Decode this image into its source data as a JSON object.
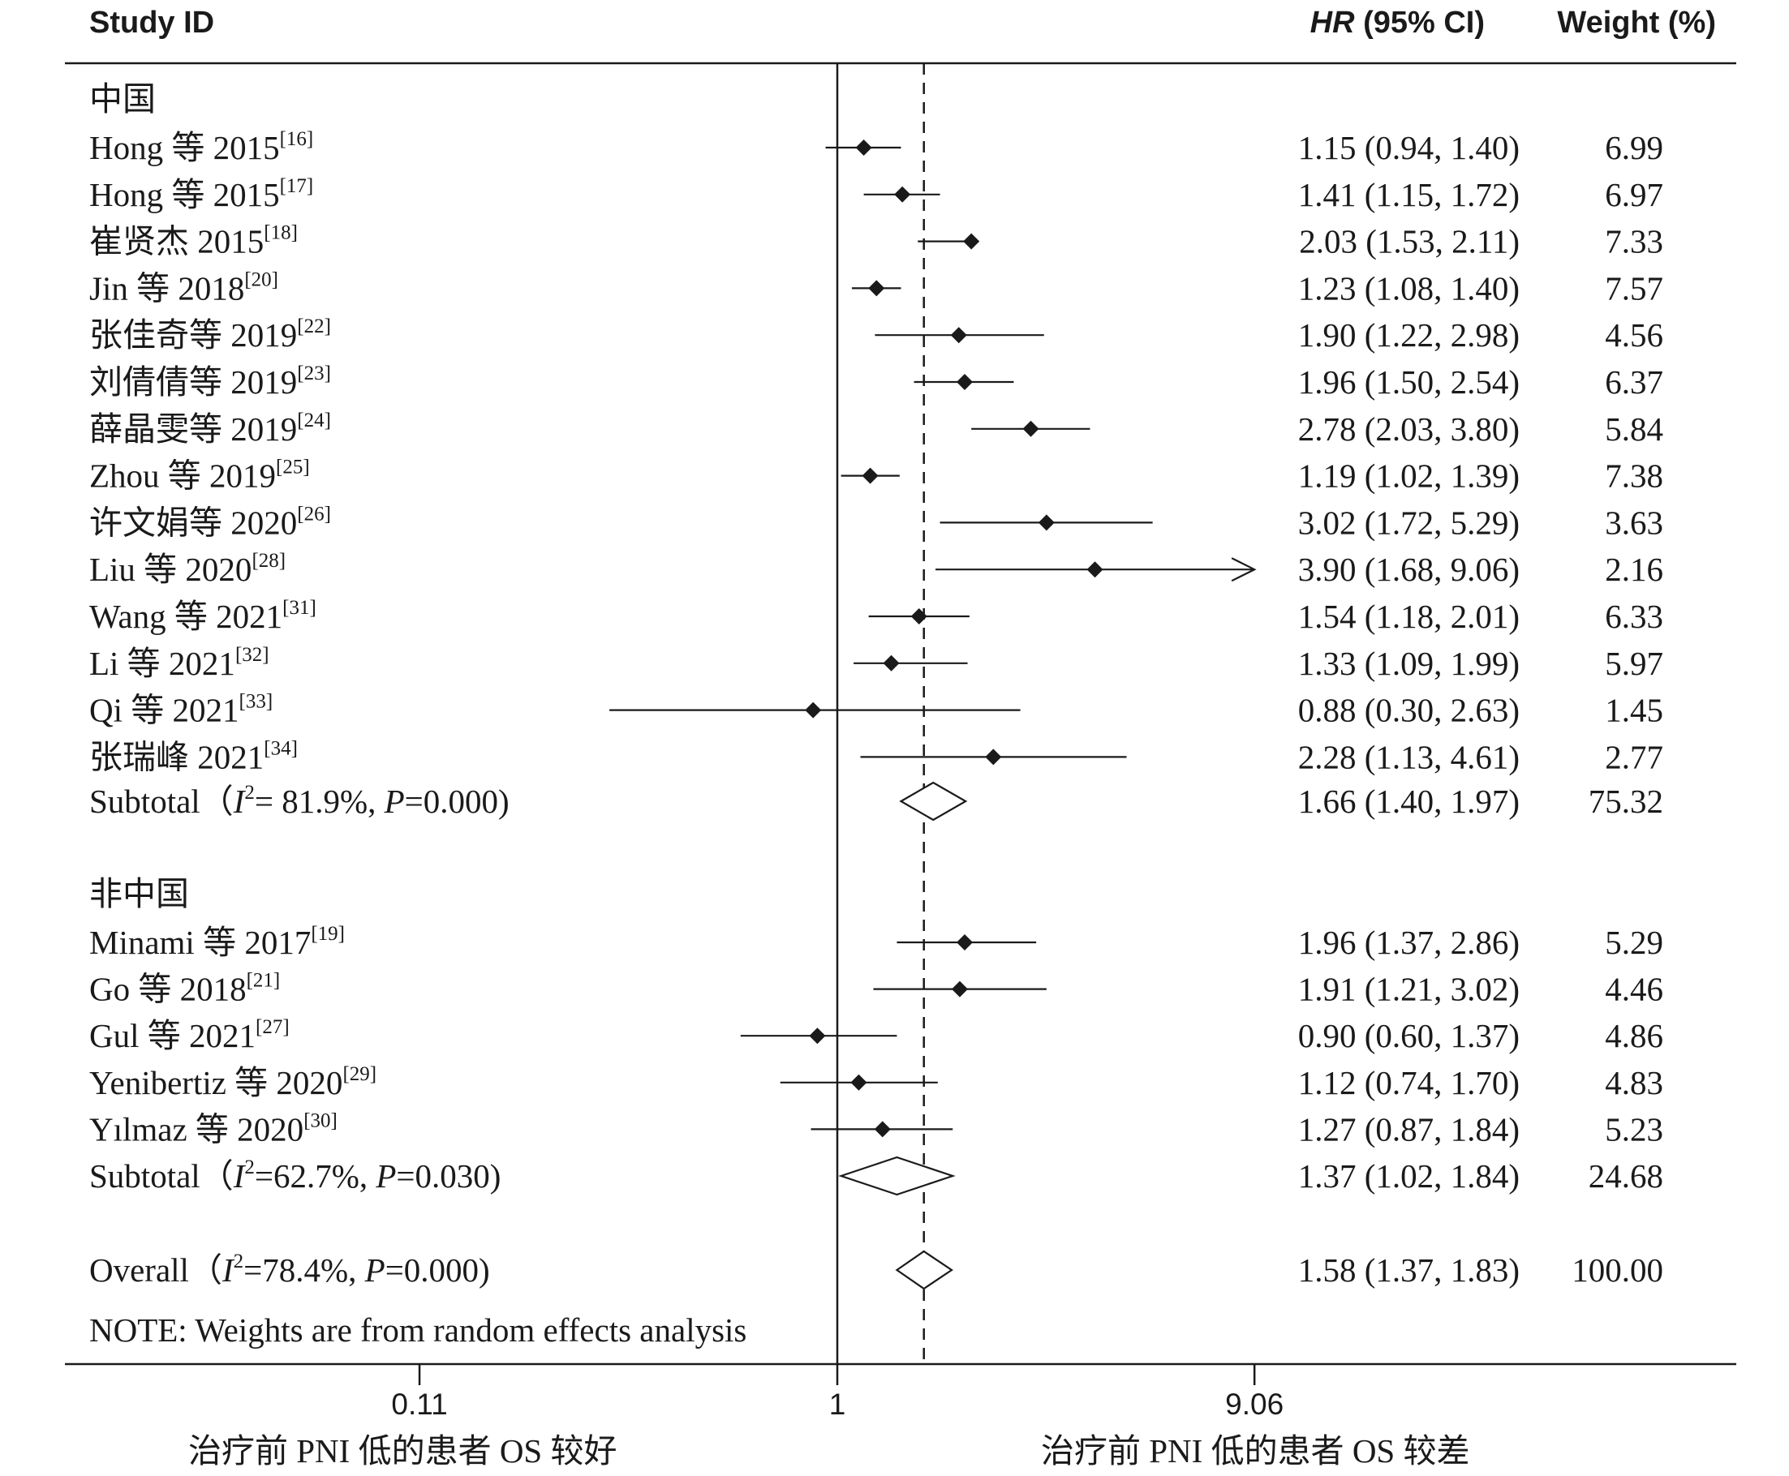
{
  "header": {
    "study": "Study ID",
    "hr_italic": "HR",
    "hr_rest": " (95% CI)",
    "weight": "Weight (%)"
  },
  "chart_data": {
    "type": "forest",
    "axis": {
      "scale": "log",
      "ticks": [
        0.11,
        1,
        9.06
      ],
      "tick_labels": [
        "0.11",
        "1",
        "9.06"
      ],
      "null_value": 1,
      "overall_line": 1.58
    },
    "footer_left": "治疗前 PNI 低的患者 OS 较好",
    "footer_right": "治疗前 PNI 低的患者 OS 较差",
    "note": "NOTE: Weights are from random effects analysis",
    "groups": [
      {
        "name": "中国",
        "studies": [
          {
            "label": "Hong 等 2015",
            "ref": "[16]",
            "hr": 1.15,
            "lo": 0.94,
            "hi": 1.4,
            "ci": "1.15 (0.94, 1.40)",
            "weight": "6.99"
          },
          {
            "label": "Hong 等 2015",
            "ref": "[17]",
            "hr": 1.41,
            "lo": 1.15,
            "hi": 1.72,
            "ci": "1.41 (1.15, 1.72)",
            "weight": "6.97"
          },
          {
            "label": "崔贤杰 2015",
            "ref": "[18]",
            "hr": 2.03,
            "lo": 1.53,
            "hi": 2.11,
            "ci": "2.03 (1.53, 2.11)",
            "weight": "7.33"
          },
          {
            "label": "Jin 等 2018",
            "ref": "[20]",
            "hr": 1.23,
            "lo": 1.08,
            "hi": 1.4,
            "ci": "1.23 (1.08, 1.40)",
            "weight": "7.57"
          },
          {
            "label": "张佳奇等 2019",
            "ref": "[22]",
            "hr": 1.9,
            "lo": 1.22,
            "hi": 2.98,
            "ci": "1.90 (1.22, 2.98)",
            "weight": "4.56"
          },
          {
            "label": "刘倩倩等 2019",
            "ref": "[23]",
            "hr": 1.96,
            "lo": 1.5,
            "hi": 2.54,
            "ci": "1.96 (1.50, 2.54)",
            "weight": "6.37"
          },
          {
            "label": "薛晶雯等 2019",
            "ref": "[24]",
            "hr": 2.78,
            "lo": 2.03,
            "hi": 3.8,
            "ci": "2.78 (2.03, 3.80)",
            "weight": "5.84"
          },
          {
            "label": "Zhou 等 2019",
            "ref": "[25]",
            "hr": 1.19,
            "lo": 1.02,
            "hi": 1.39,
            "ci": "1.19 (1.02, 1.39)",
            "weight": "7.38"
          },
          {
            "label": "许文娟等 2020",
            "ref": "[26]",
            "hr": 3.02,
            "lo": 1.72,
            "hi": 5.29,
            "ci": "3.02 (1.72, 5.29)",
            "weight": "3.63"
          },
          {
            "label": "Liu 等 2020",
            "ref": "[28]",
            "hr": 3.9,
            "lo": 1.68,
            "hi": 9.06,
            "ci": "3.90 (1.68, 9.06)",
            "weight": "2.16",
            "arrow": true
          },
          {
            "label": "Wang 等 2021",
            "ref": "[31]",
            "hr": 1.54,
            "lo": 1.18,
            "hi": 2.01,
            "ci": "1.54 (1.18, 2.01)",
            "weight": "6.33"
          },
          {
            "label": "Li 等 2021",
            "ref": "[32]",
            "hr": 1.33,
            "lo": 1.09,
            "hi": 1.99,
            "ci": "1.33 (1.09, 1.99)",
            "weight": "5.97"
          },
          {
            "label": "Qi 等 2021",
            "ref": "[33]",
            "hr": 0.88,
            "lo": 0.3,
            "hi": 2.63,
            "ci": "0.88 (0.30, 2.63)",
            "weight": "1.45"
          },
          {
            "label": "张瑞峰 2021",
            "ref": "[34]",
            "hr": 2.28,
            "lo": 1.13,
            "hi": 4.61,
            "ci": "2.28 (1.13, 4.61)",
            "weight": "2.77"
          }
        ],
        "subtotal": {
          "label_pre": "Subtotal（",
          "i2": "= 81.9%, ",
          "p": "=0.000)",
          "hr": 1.66,
          "lo": 1.4,
          "hi": 1.97,
          "ci": "1.66 (1.40, 1.97)",
          "weight": "75.32"
        }
      },
      {
        "name": "非中国",
        "studies": [
          {
            "label": "Minami 等 2017",
            "ref": "[19]",
            "hr": 1.96,
            "lo": 1.37,
            "hi": 2.86,
            "ci": "1.96 (1.37, 2.86)",
            "weight": "5.29"
          },
          {
            "label": "Go 等 2018",
            "ref": "[21]",
            "hr": 1.91,
            "lo": 1.21,
            "hi": 3.02,
            "ci": "1.91 (1.21, 3.02)",
            "weight": "4.46"
          },
          {
            "label": "Gul 等 2021",
            "ref": "[27]",
            "hr": 0.9,
            "lo": 0.6,
            "hi": 1.37,
            "ci": "0.90 (0.60, 1.37)",
            "weight": "4.86"
          },
          {
            "label": "Yenibertiz 等 2020",
            "ref": "[29]",
            "hr": 1.12,
            "lo": 0.74,
            "hi": 1.7,
            "ci": "1.12 (0.74, 1.70)",
            "weight": "4.83"
          },
          {
            "label": "Yılmaz 等 2020",
            "ref": "[30]",
            "hr": 1.27,
            "lo": 0.87,
            "hi": 1.84,
            "ci": "1.27 (0.87, 1.84)",
            "weight": "5.23"
          }
        ],
        "subtotal": {
          "label_pre": "Subtotal（",
          "i2": "=62.7%, ",
          "p": "=0.030)",
          "hr": 1.37,
          "lo": 1.02,
          "hi": 1.84,
          "ci": "1.37 (1.02, 1.84)",
          "weight": "24.68"
        }
      }
    ],
    "overall": {
      "label_pre": "Overall（",
      "i2": "=78.4%, ",
      "p": "=0.000)",
      "hr": 1.58,
      "lo": 1.37,
      "hi": 1.83,
      "ci": "1.58 (1.37, 1.83)",
      "weight": "100.00"
    }
  }
}
